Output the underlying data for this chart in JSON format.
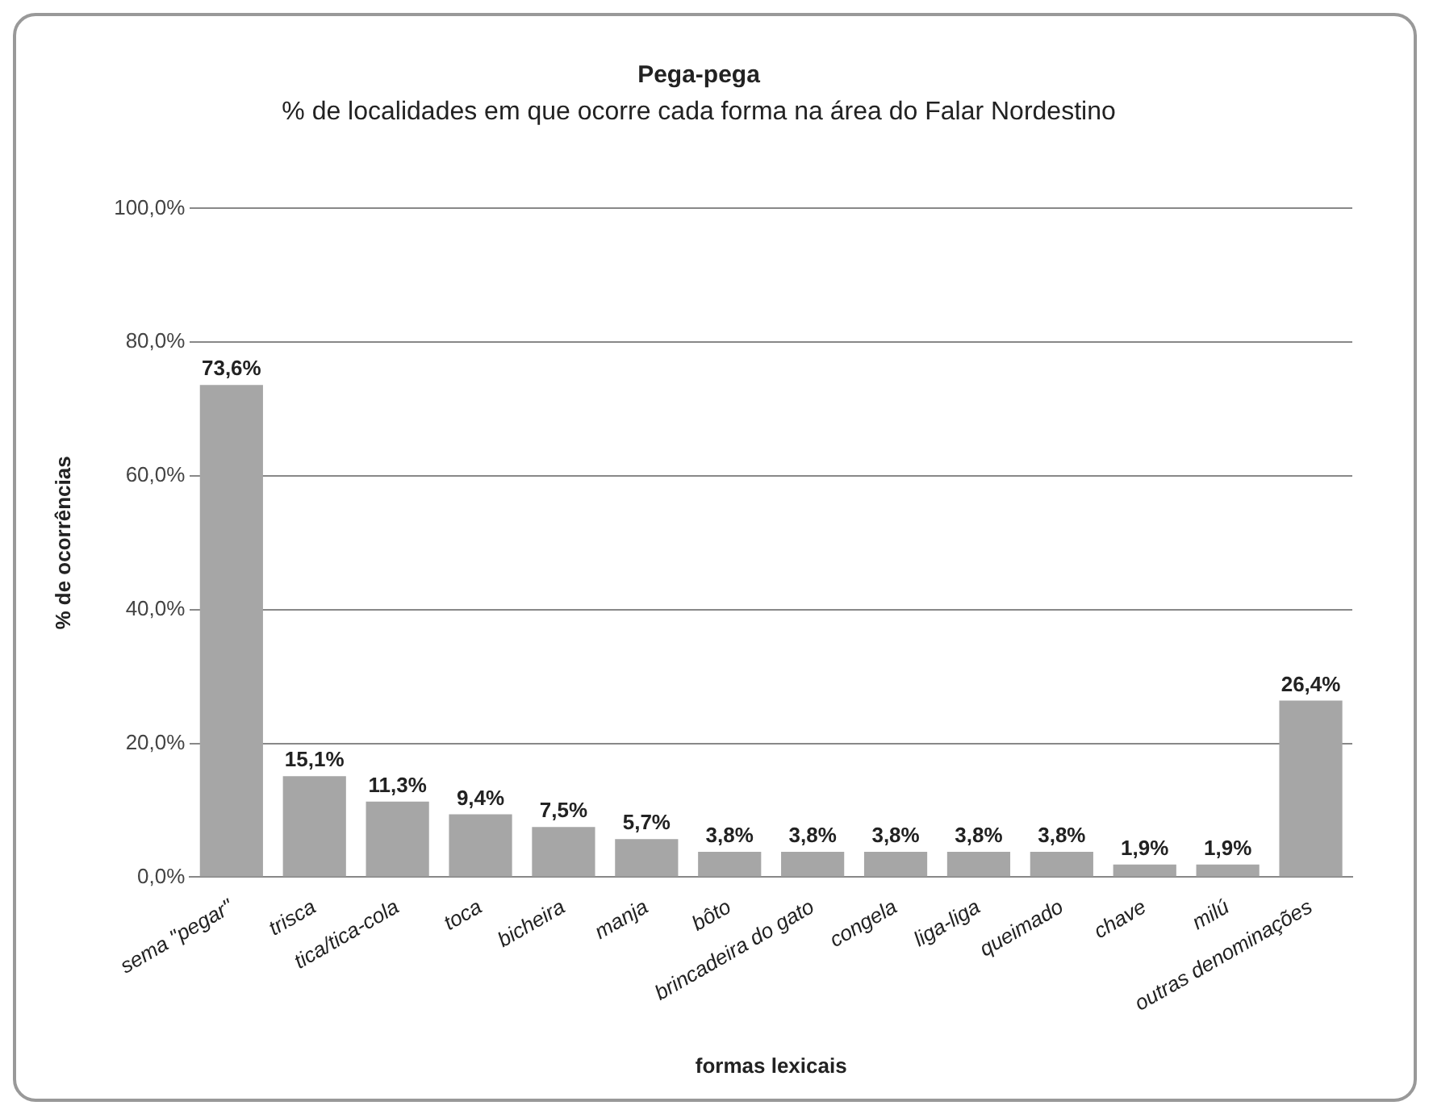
{
  "chart_data": {
    "type": "bar",
    "title": "Pega-pega",
    "subtitle": "% de localidades em que ocorre cada forma na área do Falar Nordestino",
    "xlabel": "formas lexicais",
    "ylabel": "% de ocorrências",
    "categories": [
      "sema \"pegar\"",
      "trisca",
      "tica/tica-cola",
      "toca",
      "bicheira",
      "manja",
      "bôto",
      "brincadeira do gato",
      "congela",
      "liga-liga",
      "queimado",
      "chave",
      "milú",
      "outras denominações"
    ],
    "values": [
      73.6,
      15.1,
      11.3,
      9.4,
      7.5,
      5.7,
      3.8,
      3.8,
      3.8,
      3.8,
      3.8,
      1.9,
      1.9,
      26.4
    ],
    "value_labels": [
      "73,6%",
      "15,1%",
      "11,3%",
      "9,4%",
      "7,5%",
      "5,7%",
      "3,8%",
      "3,8%",
      "3,8%",
      "3,8%",
      "3,8%",
      "1,9%",
      "1,9%",
      "26,4%"
    ],
    "color": "#a6a6a6",
    "ylim": [
      0,
      100
    ],
    "yticks": [
      {
        "value": 0,
        "label": "0,0%"
      },
      {
        "value": 20,
        "label": "20,0%"
      },
      {
        "value": 40,
        "label": "40,0%"
      },
      {
        "value": 60,
        "label": "60,0%"
      },
      {
        "value": 80,
        "label": "80,0%"
      },
      {
        "value": 100,
        "label": "100,0%"
      }
    ],
    "grid": "y",
    "legend": false
  }
}
